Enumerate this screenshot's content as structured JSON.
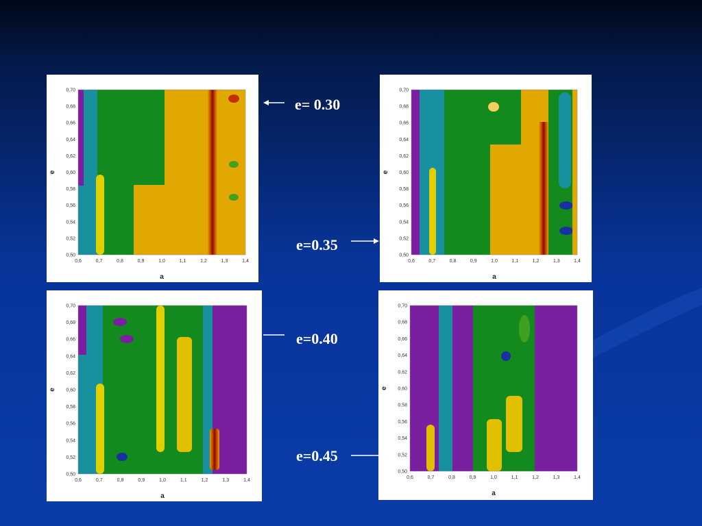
{
  "slide": {
    "plots": [
      {
        "label": "e= 0.30",
        "x_axis_label": "a",
        "y_axis_label": "e",
        "xticks": [
          "0,6",
          "0,7",
          "0,8",
          "0,9",
          "1,0",
          "1,1",
          "1,2",
          "1,3",
          "1,4"
        ],
        "yticks": [
          "0,50",
          "0,52",
          "0,54",
          "0,56",
          "0,58",
          "0,60",
          "0,62",
          "0,64",
          "0,66",
          "0,68",
          "0,70"
        ]
      },
      {
        "label": "e=0.35",
        "x_axis_label": "a",
        "y_axis_label": "e",
        "xticks": [
          "0,6",
          "0,7",
          "0,8",
          "0,9",
          "1,0",
          "1,1",
          "1,2",
          "1,3",
          "1,4"
        ],
        "yticks": [
          "0,50",
          "0,52",
          "0,54",
          "0,56",
          "0,58",
          "0,60",
          "0,62",
          "0,64",
          "0,66",
          "0,68",
          "0,70"
        ]
      },
      {
        "label": "e=0.40",
        "x_axis_label": "a",
        "y_axis_label": "e",
        "xticks": [
          "0,6",
          "0,7",
          "0,8",
          "0,9",
          "1,0",
          "1,1",
          "1,2",
          "1,3",
          "1,4"
        ],
        "yticks": [
          "0,50",
          "0,52",
          "0,54",
          "0,56",
          "0,58",
          "0,60",
          "0,62",
          "0,64",
          "0,66",
          "0,68",
          "0,70"
        ]
      },
      {
        "label": "e=0.45",
        "x_axis_label": "a",
        "y_axis_label": "e",
        "xticks": [
          "0,6",
          "0,7",
          "0,8",
          "0,9",
          "1,0",
          "1,1",
          "1,2",
          "1,3",
          "1,4"
        ],
        "yticks": [
          "0,50",
          "0,52",
          "0,54",
          "0,56",
          "0,58",
          "0,60",
          "0,62",
          "0,64",
          "0,66",
          "0,68",
          "0,70"
        ]
      }
    ]
  }
}
